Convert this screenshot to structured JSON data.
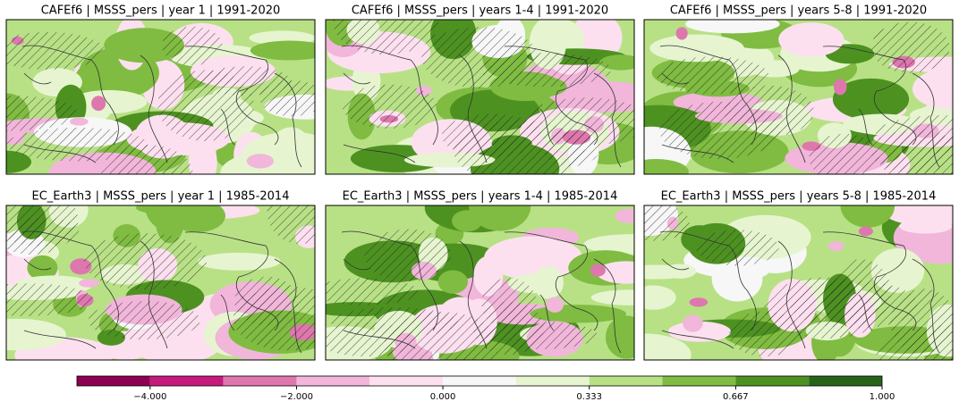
{
  "panels": [
    {
      "title": "CAFEf6 | MSSS_pers | year 1 | 1991-2020"
    },
    {
      "title": "CAFEf6 | MSSS_pers | years 1-4 | 1991-2020"
    },
    {
      "title": "CAFEf6 | MSSS_pers | years 5-8 | 1991-2020"
    },
    {
      "title": "EC_Earth3 | MSSS_pers | year 1 | 1985-2014"
    },
    {
      "title": "EC_Earth3 | MSSS_pers | years 1-4 | 1985-2014"
    },
    {
      "title": "EC_Earth3 | MSSS_pers | years 5-8 | 1985-2014"
    }
  ],
  "colorbar": {
    "bounds": [
      -5,
      -4,
      -3,
      -2,
      -1,
      0,
      0.167,
      0.333,
      0.5,
      0.667,
      0.833,
      1
    ],
    "colors": [
      "#8e0152",
      "#c51b7d",
      "#de77ae",
      "#f1b6da",
      "#fde0ef",
      "#f7f7f7",
      "#e6f5d0",
      "#b8e186",
      "#7fbc41",
      "#4d9221",
      "#276419"
    ],
    "ticks": [
      {
        "value": -4,
        "label": "−4.000"
      },
      {
        "value": -2,
        "label": "−2.000"
      },
      {
        "value": 0,
        "label": "0.000"
      },
      {
        "value": 0.333,
        "label": "0.333"
      },
      {
        "value": 0.667,
        "label": "0.667"
      },
      {
        "value": 1,
        "label": "1.000"
      }
    ]
  }
}
